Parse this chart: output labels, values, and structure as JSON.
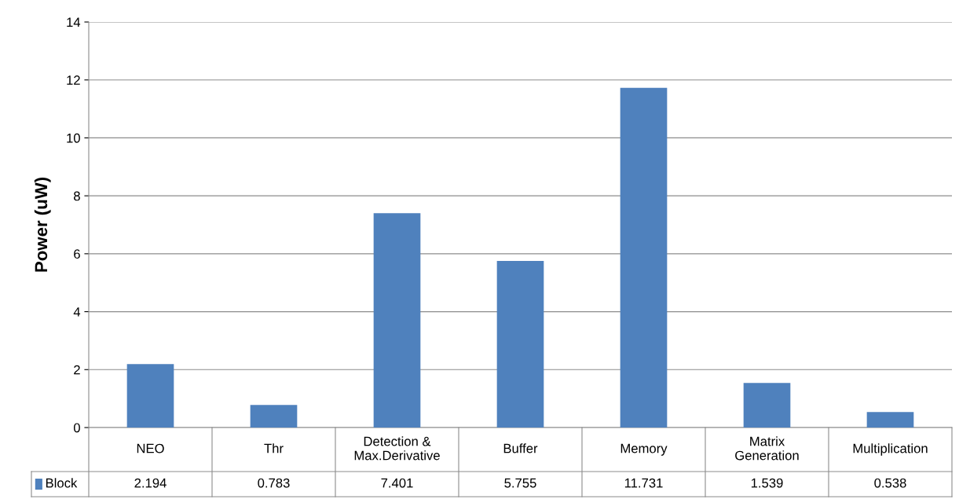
{
  "chart_data": {
    "type": "bar",
    "ylabel": "Power (uW)",
    "categories": [
      "NEO",
      "Thr",
      "Detection &\nMax.Derivative",
      "Buffer",
      "Memory",
      "Matrix\nGeneration",
      "Multiplication"
    ],
    "series": [
      {
        "name": "Block",
        "color": "#4f81bd",
        "values": [
          2.194,
          0.783,
          7.401,
          5.755,
          11.731,
          1.539,
          0.538
        ]
      }
    ],
    "ylim": [
      0,
      14
    ],
    "yticks": [
      0,
      2,
      4,
      6,
      8,
      10,
      12,
      14
    ],
    "grid": "y",
    "legend": "bottom left",
    "data_labels": true
  }
}
